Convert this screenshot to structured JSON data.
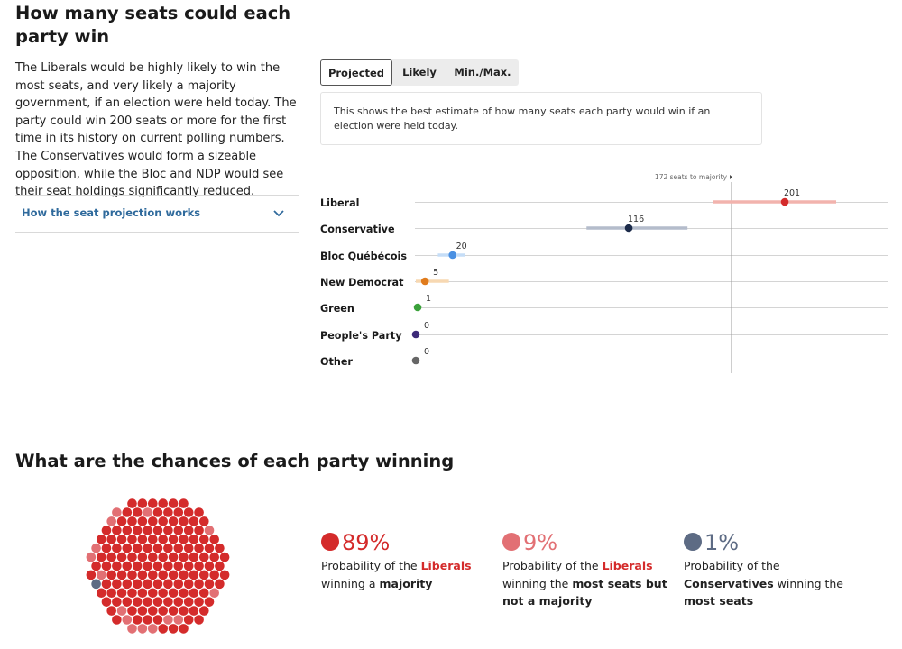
{
  "header": {
    "title": "How many seats could each party win",
    "intro": "The Liberals would be highly likely to win the most seats, and very likely a majority government, if an election were held today. The party could win 200 seats or more for the first time in its history on current polling numbers. The Conservatives would form a sizeable opposition, while the Bloc and NDP would see their seat holdings significantly reduced."
  },
  "accordion": {
    "label": "How the seat projection works"
  },
  "tabs": [
    {
      "label": "Projected",
      "active": true
    },
    {
      "label": "Likely",
      "active": false
    },
    {
      "label": "Min./Max.",
      "active": false
    }
  ],
  "note": "This shows the best estimate of how many seats each party would win if an election were held today.",
  "chart_data": {
    "type": "scatter",
    "majority_label": "172 seats to majority",
    "majority_value": 172,
    "xlim": [
      0,
      240
    ],
    "parties": [
      {
        "name": "Liberal",
        "value": 201,
        "low": 162,
        "high": 229,
        "color": "#d42b2b",
        "range_color": "#f2b3ad"
      },
      {
        "name": "Conservative",
        "value": 116,
        "low": 93,
        "high": 148,
        "color": "#1c2b4a",
        "range_color": "#b4bccb"
      },
      {
        "name": "Bloc Québécois",
        "value": 20,
        "low": 12,
        "high": 27,
        "color": "#4a90e2",
        "range_color": "#c5ddf7"
      },
      {
        "name": "New Democrat",
        "value": 5,
        "low": 0,
        "high": 18,
        "color": "#e07b1c",
        "range_color": "#f7d8b2"
      },
      {
        "name": "Green",
        "value": 1,
        "low": 1,
        "high": 1,
        "color": "#3aa13a",
        "range_color": "#cfe9cf"
      },
      {
        "name": "People's Party",
        "value": 0,
        "low": 0,
        "high": 0,
        "color": "#3c2a78",
        "range_color": "#d2cce6"
      },
      {
        "name": "Other",
        "value": 0,
        "low": 0,
        "high": 0,
        "color": "#666666",
        "range_color": "#dddddd"
      }
    ]
  },
  "chances": {
    "title": "What are the chances of each party winning",
    "colors": {
      "majority": "#d42b2b",
      "most_seats": "#e27074",
      "conservative": "#5d6b84"
    },
    "stats": [
      {
        "pct": "89%",
        "color": "#d42b2b",
        "line1_pre": "Probability of the ",
        "line1_party": "Liberals",
        "line2_pre": "winning a ",
        "line2_bold": "majority",
        "line3": ""
      },
      {
        "pct": "9%",
        "color": "#e27074",
        "line1_pre": "Probability of the ",
        "line1_party": "Liberals",
        "line2_pre": "winning the ",
        "line2_bold": "most seats but",
        "line3": "not a majority"
      },
      {
        "pct": "1%",
        "color": "#5d6b84",
        "line1_pre": "Probability of the",
        "line1_party": "",
        "line2_pre": "",
        "line2_bold": "Conservatives",
        "line2_post": " winning the",
        "line3": "most seats"
      }
    ],
    "dot_counts": {
      "majority": 89,
      "most_seats": 9,
      "conservative": 1
    }
  }
}
